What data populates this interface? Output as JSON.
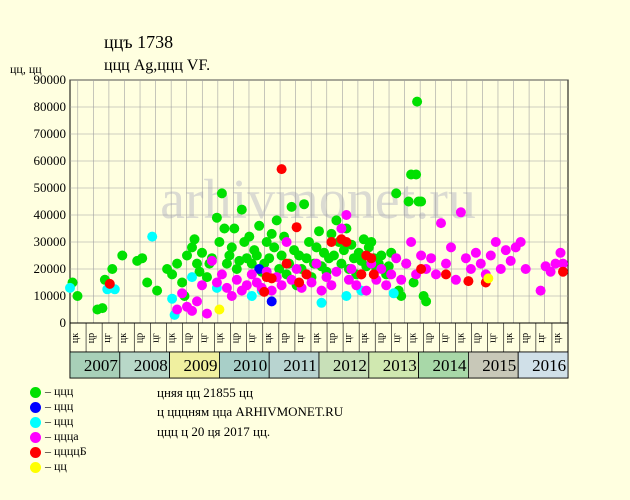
{
  "header": {
    "title": "ццъ 1738",
    "subtitle": "ццц Ag,ццц VF.",
    "ylabel": "цц, цц"
  },
  "legend": [
    {
      "label": "– ццц",
      "color": "#00e000"
    },
    {
      "label": "– ццц",
      "color": "#0000ff"
    },
    {
      "label": "– ццц",
      "color": "#00ffff"
    },
    {
      "label": "– ццца",
      "color": "#ff00ff"
    },
    {
      "label": "– ццццБ",
      "color": "#ff0000"
    },
    {
      "label": "– цц",
      "color": "#ffff00"
    }
  ],
  "notes": {
    "line1": "цняя цц 21855 цц",
    "line2": "ц цццням цца ARHIVMONET.RU",
    "line3": "ццц ц 20 ця 2017 цц."
  },
  "watermark": "arhivmonet.ru",
  "chart_data": {
    "type": "scatter",
    "title": "ццъ 1738",
    "subtitle": "ццц Ag,ццц VF.",
    "ylabel": "цц, цц",
    "ylim": [
      0,
      90000
    ],
    "yticks": [
      "0",
      "10000",
      "20000",
      "30000",
      "40000",
      "50000",
      "60000",
      "70000",
      "80000",
      "90000"
    ],
    "years": [
      "2007",
      "2008",
      "2009",
      "2010",
      "2011",
      "2012",
      "2013",
      "2014",
      "2015",
      "2016"
    ],
    "year_start": 2006.75,
    "year_end": 2016.75,
    "quarter_labels": [
      "цк",
      "цр",
      "цг",
      "цк",
      "цр",
      "цг",
      "цк",
      "цр",
      "цг",
      "цк",
      "цр",
      "цг",
      "цк",
      "цр",
      "цг",
      "цк",
      "цр",
      "цг",
      "цк",
      "цр",
      "цг",
      "цк",
      "цр",
      "цг",
      "цк",
      "цр",
      "цг",
      "цк",
      "цр",
      "цг",
      "цк"
    ],
    "grid": true,
    "series": [
      {
        "color": "#00e000",
        "points": [
          [
            2006.8,
            15000
          ],
          [
            2006.9,
            10000
          ],
          [
            2007.3,
            5000
          ],
          [
            2007.4,
            5500
          ],
          [
            2007.45,
            16000
          ],
          [
            2007.6,
            20000
          ],
          [
            2007.8,
            25000
          ],
          [
            2008.1,
            23000
          ],
          [
            2008.2,
            24000
          ],
          [
            2008.3,
            15000
          ],
          [
            2008.5,
            12000
          ],
          [
            2008.7,
            20000
          ],
          [
            2008.8,
            18000
          ],
          [
            2008.9,
            22000
          ],
          [
            2009.0,
            15000
          ],
          [
            2009.05,
            10000
          ],
          [
            2009.1,
            25000
          ],
          [
            2009.2,
            28000
          ],
          [
            2009.25,
            31000
          ],
          [
            2009.3,
            22000
          ],
          [
            2009.35,
            19000
          ],
          [
            2009.4,
            26000
          ],
          [
            2009.5,
            17000
          ],
          [
            2009.55,
            22000
          ],
          [
            2009.6,
            24000
          ],
          [
            2009.7,
            39000
          ],
          [
            2009.75,
            30000
          ],
          [
            2009.8,
            48000
          ],
          [
            2009.85,
            35000
          ],
          [
            2009.9,
            22000
          ],
          [
            2009.95,
            25000
          ],
          [
            2010.0,
            28000
          ],
          [
            2010.05,
            35000
          ],
          [
            2010.1,
            20000
          ],
          [
            2010.15,
            23000
          ],
          [
            2010.2,
            42000
          ],
          [
            2010.25,
            30000
          ],
          [
            2010.3,
            24000
          ],
          [
            2010.35,
            32000
          ],
          [
            2010.4,
            22000
          ],
          [
            2010.45,
            27000
          ],
          [
            2010.5,
            25000
          ],
          [
            2010.55,
            36000
          ],
          [
            2010.6,
            19000
          ],
          [
            2010.65,
            22000
          ],
          [
            2010.7,
            30000
          ],
          [
            2010.75,
            24000
          ],
          [
            2010.8,
            33000
          ],
          [
            2010.85,
            28000
          ],
          [
            2010.9,
            38000
          ],
          [
            2010.95,
            20000
          ],
          [
            2011.0,
            25000
          ],
          [
            2011.05,
            32000
          ],
          [
            2011.1,
            18000
          ],
          [
            2011.15,
            22000
          ],
          [
            2011.2,
            43000
          ],
          [
            2011.25,
            27000
          ],
          [
            2011.3,
            14000
          ],
          [
            2011.35,
            25000
          ],
          [
            2011.4,
            20000
          ],
          [
            2011.45,
            44000
          ],
          [
            2011.5,
            24000
          ],
          [
            2011.55,
            30000
          ],
          [
            2011.6,
            17000
          ],
          [
            2011.65,
            22000
          ],
          [
            2011.7,
            28000
          ],
          [
            2011.75,
            34000
          ],
          [
            2011.8,
            21000
          ],
          [
            2011.85,
            26000
          ],
          [
            2011.9,
            19000
          ],
          [
            2011.95,
            24000
          ],
          [
            2012.0,
            33000
          ],
          [
            2012.05,
            25000
          ],
          [
            2012.1,
            38000
          ],
          [
            2012.15,
            30000
          ],
          [
            2012.2,
            22000
          ],
          [
            2012.25,
            27000
          ],
          [
            2012.3,
            35000
          ],
          [
            2012.35,
            20000
          ],
          [
            2012.4,
            29000
          ],
          [
            2012.45,
            24000
          ],
          [
            2012.5,
            18000
          ],
          [
            2012.55,
            26000
          ],
          [
            2012.6,
            23000
          ],
          [
            2012.65,
            31000
          ],
          [
            2012.7,
            21000
          ],
          [
            2012.75,
            28000
          ],
          [
            2012.8,
            30000
          ],
          [
            2012.85,
            24000
          ],
          [
            2012.9,
            20000
          ],
          [
            2012.95,
            22000
          ],
          [
            2013.0,
            25000
          ],
          [
            2013.1,
            18000
          ],
          [
            2013.15,
            21000
          ],
          [
            2013.2,
            26000
          ],
          [
            2013.3,
            48000
          ],
          [
            2013.35,
            12000
          ],
          [
            2013.4,
            10000
          ],
          [
            2013.5,
            22000
          ],
          [
            2013.55,
            45000
          ],
          [
            2013.6,
            55000
          ],
          [
            2013.65,
            15000
          ],
          [
            2013.7,
            55000
          ],
          [
            2013.72,
            82000
          ],
          [
            2013.75,
            45000
          ],
          [
            2013.8,
            45000
          ],
          [
            2013.85,
            10000
          ],
          [
            2013.9,
            8000
          ]
        ]
      },
      {
        "color": "#0000ff",
        "points": [
          [
            2010.55,
            20000
          ],
          [
            2010.8,
            8000
          ]
        ]
      },
      {
        "color": "#00ffff",
        "points": [
          [
            2006.75,
            13000
          ],
          [
            2007.5,
            12500
          ],
          [
            2007.65,
            12500
          ],
          [
            2008.4,
            32000
          ],
          [
            2008.8,
            9000
          ],
          [
            2008.85,
            3000
          ],
          [
            2009.2,
            17000
          ],
          [
            2009.7,
            13000
          ],
          [
            2010.4,
            10000
          ],
          [
            2010.6,
            12000
          ],
          [
            2011.8,
            7500
          ],
          [
            2012.3,
            10000
          ],
          [
            2012.6,
            12000
          ],
          [
            2013.25,
            11000
          ]
        ]
      },
      {
        "color": "#ff00ff",
        "points": [
          [
            2008.9,
            5000
          ],
          [
            2009.0,
            11000
          ],
          [
            2009.1,
            6000
          ],
          [
            2009.2,
            4500
          ],
          [
            2009.3,
            8000
          ],
          [
            2009.4,
            14000
          ],
          [
            2009.5,
            3500
          ],
          [
            2009.6,
            23000
          ],
          [
            2009.7,
            15000
          ],
          [
            2009.8,
            18000
          ],
          [
            2009.9,
            13000
          ],
          [
            2010.0,
            10000
          ],
          [
            2010.1,
            16000
          ],
          [
            2010.2,
            12000
          ],
          [
            2010.3,
            14000
          ],
          [
            2010.4,
            18000
          ],
          [
            2010.5,
            15000
          ],
          [
            2010.6,
            13000
          ],
          [
            2010.7,
            19000
          ],
          [
            2010.8,
            12000
          ],
          [
            2010.9,
            17000
          ],
          [
            2011.0,
            14000
          ],
          [
            2011.1,
            30000
          ],
          [
            2011.2,
            16000
          ],
          [
            2011.3,
            20000
          ],
          [
            2011.4,
            13000
          ],
          [
            2011.5,
            18000
          ],
          [
            2011.6,
            15000
          ],
          [
            2011.7,
            22000
          ],
          [
            2011.8,
            12000
          ],
          [
            2011.9,
            17000
          ],
          [
            2012.0,
            14000
          ],
          [
            2012.1,
            19000
          ],
          [
            2012.2,
            35000
          ],
          [
            2012.3,
            40000
          ],
          [
            2012.35,
            16000
          ],
          [
            2012.4,
            20000
          ],
          [
            2012.5,
            14000
          ],
          [
            2012.6,
            18000
          ],
          [
            2012.7,
            12000
          ],
          [
            2012.8,
            22000
          ],
          [
            2012.9,
            16000
          ],
          [
            2013.0,
            20000
          ],
          [
            2013.1,
            14000
          ],
          [
            2013.2,
            18000
          ],
          [
            2013.3,
            24000
          ],
          [
            2013.4,
            16000
          ],
          [
            2013.5,
            22000
          ],
          [
            2013.6,
            30000
          ],
          [
            2013.7,
            18000
          ],
          [
            2013.8,
            25000
          ],
          [
            2013.9,
            20000
          ],
          [
            2014.0,
            24000
          ],
          [
            2014.1,
            18000
          ],
          [
            2014.2,
            37000
          ],
          [
            2014.3,
            22000
          ],
          [
            2014.4,
            28000
          ],
          [
            2014.5,
            16000
          ],
          [
            2014.6,
            41000
          ],
          [
            2014.7,
            24000
          ],
          [
            2014.8,
            20000
          ],
          [
            2014.9,
            26000
          ],
          [
            2015.0,
            22000
          ],
          [
            2015.1,
            18000
          ],
          [
            2015.2,
            25000
          ],
          [
            2015.3,
            30000
          ],
          [
            2015.4,
            20000
          ],
          [
            2015.5,
            27000
          ],
          [
            2015.6,
            23000
          ],
          [
            2015.7,
            28000
          ],
          [
            2015.8,
            30000
          ],
          [
            2015.9,
            20000
          ],
          [
            2016.2,
            12000
          ],
          [
            2016.3,
            21000
          ],
          [
            2016.4,
            19000
          ],
          [
            2016.5,
            22000
          ],
          [
            2016.6,
            26000
          ],
          [
            2016.65,
            22000
          ]
        ]
      },
      {
        "color": "#ff0000",
        "points": [
          [
            2007.55,
            14500
          ],
          [
            2010.65,
            11500
          ],
          [
            2010.7,
            17000
          ],
          [
            2010.8,
            16500
          ],
          [
            2011.0,
            57000
          ],
          [
            2011.1,
            22000
          ],
          [
            2011.3,
            35500
          ],
          [
            2011.35,
            15000
          ],
          [
            2011.5,
            18000
          ],
          [
            2012.0,
            30000
          ],
          [
            2012.2,
            31000
          ],
          [
            2012.3,
            30000
          ],
          [
            2012.6,
            18000
          ],
          [
            2012.7,
            25000
          ],
          [
            2012.8,
            24000
          ],
          [
            2012.85,
            18000
          ],
          [
            2013.8,
            20000
          ],
          [
            2014.3,
            18000
          ],
          [
            2014.75,
            15500
          ],
          [
            2015.1,
            15000
          ],
          [
            2016.65,
            19000
          ]
        ]
      },
      {
        "color": "#ffff00",
        "points": [
          [
            2009.75,
            5000
          ],
          [
            2015.15,
            16500
          ]
        ]
      }
    ]
  }
}
